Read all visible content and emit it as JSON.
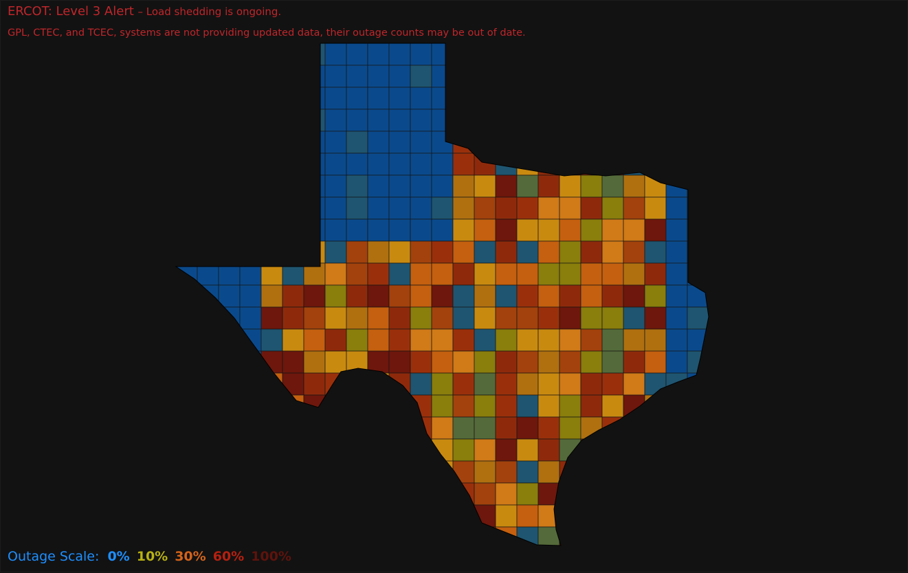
{
  "alert": {
    "title": "ERCOT: Level 3 Alert",
    "detail": "– Load shedding is ongoing.",
    "notice": "GPL, CTEC, and TCEC, systems are not providing updated data, their outage counts may be out of date."
  },
  "legend": {
    "label": "Outage Scale:",
    "items": [
      {
        "label": "0%",
        "color": "#1e8fff"
      },
      {
        "label": "10%",
        "color": "#b8b213"
      },
      {
        "label": "30%",
        "color": "#d4631a"
      },
      {
        "label": "60%",
        "color": "#b52010"
      },
      {
        "label": "100%",
        "color": "#5e130c"
      }
    ]
  }
}
